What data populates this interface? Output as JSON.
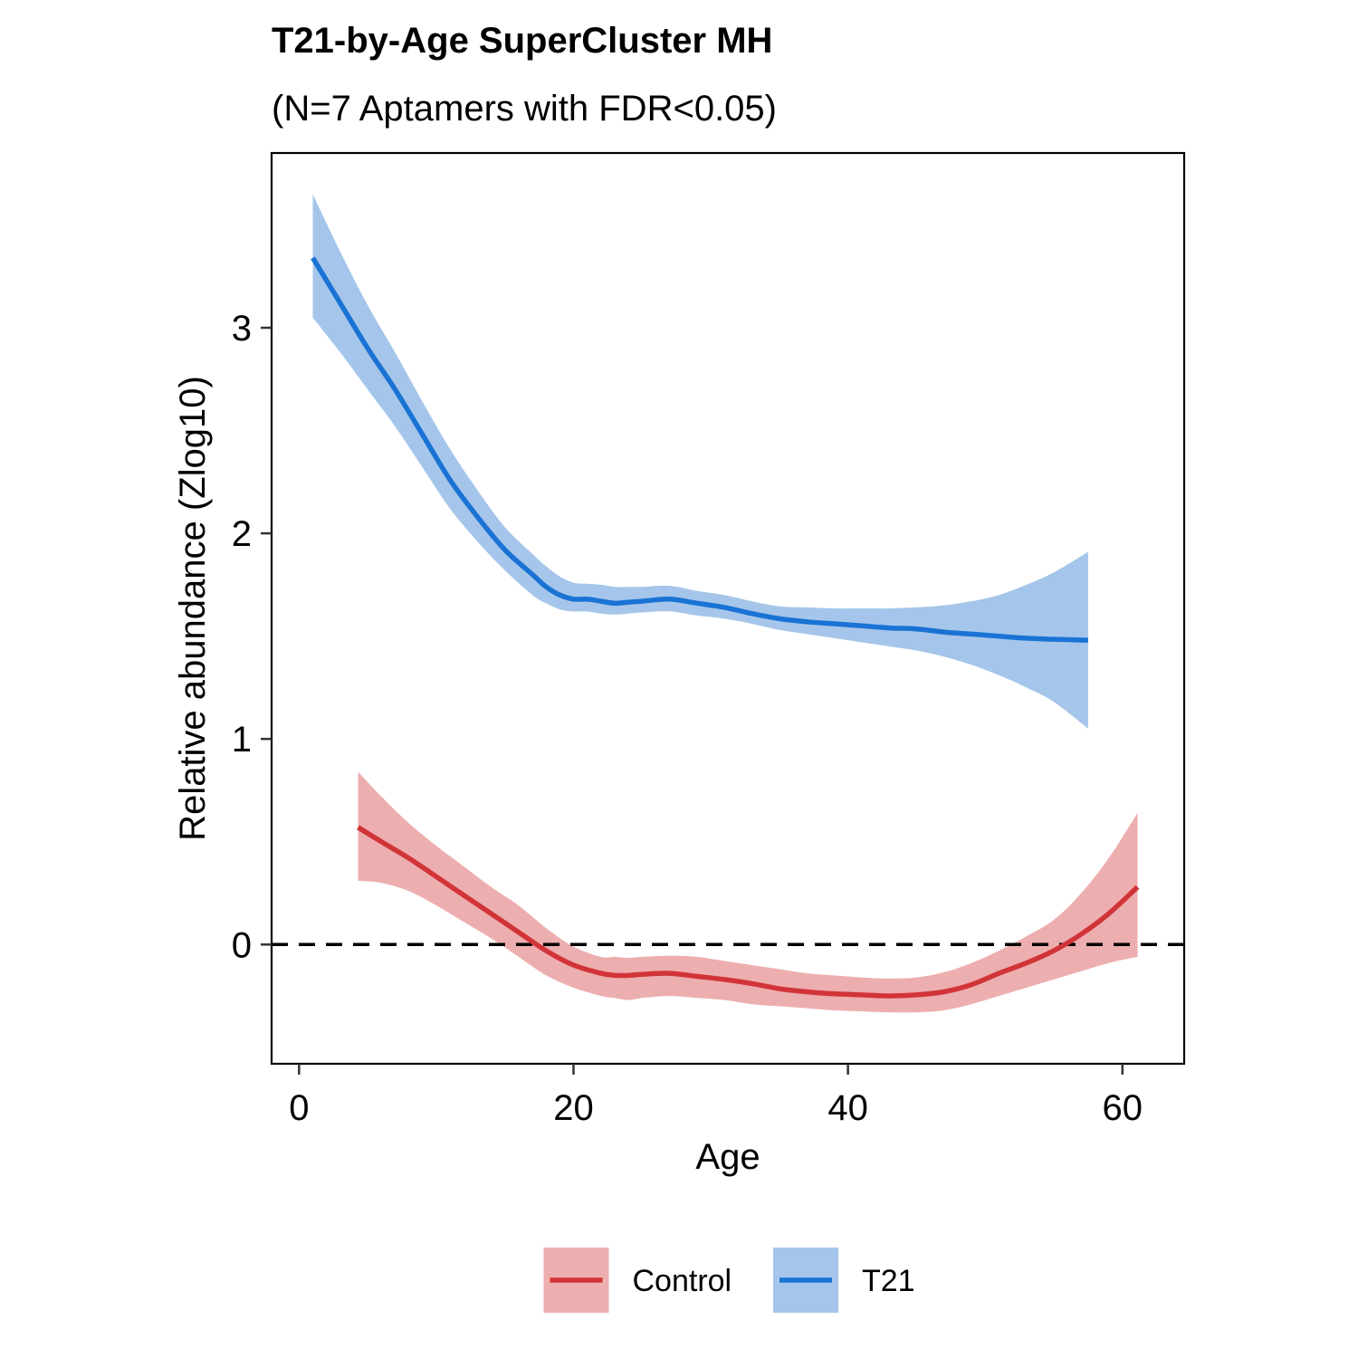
{
  "chart_data": {
    "type": "line",
    "title": "T21-by-Age SuperCluster MH",
    "subtitle": "(N=7 Aptamers with FDR<0.05)",
    "xlabel": "Age",
    "ylabel": "Relative abundance (Zlog10)",
    "xlim": [
      -2,
      64.5
    ],
    "ylim": [
      -0.58,
      3.85
    ],
    "xticks": [
      0,
      20,
      40,
      60
    ],
    "yticks": [
      0,
      1,
      2,
      3
    ],
    "grid": false,
    "reference_line": {
      "y": 0,
      "style": "dashed"
    },
    "legend": {
      "position": "bottom",
      "entries": [
        "Control",
        "T21"
      ]
    },
    "series": [
      {
        "name": "Control",
        "color": "#D13438",
        "band_color": "#EDAEAF",
        "x": [
          4.3,
          6,
          8,
          10,
          12,
          14,
          16,
          18,
          20,
          22,
          23,
          24,
          25,
          27,
          29,
          31,
          33,
          35,
          37,
          39,
          41,
          43,
          45,
          47,
          49,
          51,
          53,
          55,
          57,
          59,
          61.1
        ],
        "y": [
          0.57,
          0.5,
          0.42,
          0.33,
          0.24,
          0.15,
          0.06,
          -0.03,
          -0.1,
          -0.14,
          -0.15,
          -0.15,
          -0.145,
          -0.14,
          -0.155,
          -0.17,
          -0.19,
          -0.215,
          -0.23,
          -0.24,
          -0.245,
          -0.25,
          -0.245,
          -0.23,
          -0.195,
          -0.14,
          -0.09,
          -0.03,
          0.05,
          0.15,
          0.28
        ],
        "lower": [
          0.31,
          0.3,
          0.26,
          0.19,
          0.11,
          0.03,
          -0.06,
          -0.15,
          -0.21,
          -0.25,
          -0.26,
          -0.27,
          -0.26,
          -0.25,
          -0.26,
          -0.27,
          -0.29,
          -0.3,
          -0.31,
          -0.32,
          -0.325,
          -0.33,
          -0.33,
          -0.32,
          -0.29,
          -0.25,
          -0.21,
          -0.17,
          -0.13,
          -0.09,
          -0.06
        ],
        "upper": [
          0.84,
          0.72,
          0.59,
          0.48,
          0.38,
          0.28,
          0.19,
          0.08,
          -0.01,
          -0.06,
          -0.06,
          -0.065,
          -0.06,
          -0.055,
          -0.06,
          -0.08,
          -0.1,
          -0.12,
          -0.14,
          -0.15,
          -0.16,
          -0.165,
          -0.16,
          -0.135,
          -0.09,
          -0.03,
          0.04,
          0.12,
          0.25,
          0.42,
          0.64
        ]
      },
      {
        "name": "T21",
        "color": "#1A73D4",
        "band_color": "#A5C6EA",
        "x": [
          1,
          3,
          5,
          7,
          9,
          11,
          13,
          15,
          17,
          18,
          19,
          20,
          21,
          22,
          23,
          24,
          25,
          27,
          29,
          31,
          33,
          35,
          37,
          39,
          41,
          43,
          45,
          47,
          49,
          51,
          53,
          55,
          57.5
        ],
        "y": [
          3.34,
          3.12,
          2.9,
          2.7,
          2.48,
          2.26,
          2.08,
          1.92,
          1.8,
          1.74,
          1.7,
          1.68,
          1.68,
          1.67,
          1.66,
          1.665,
          1.67,
          1.68,
          1.66,
          1.64,
          1.61,
          1.585,
          1.57,
          1.56,
          1.55,
          1.54,
          1.535,
          1.52,
          1.51,
          1.5,
          1.49,
          1.485,
          1.48
        ],
        "lower": [
          3.05,
          2.88,
          2.7,
          2.52,
          2.32,
          2.12,
          1.96,
          1.82,
          1.7,
          1.66,
          1.63,
          1.62,
          1.62,
          1.61,
          1.605,
          1.61,
          1.615,
          1.62,
          1.6,
          1.585,
          1.56,
          1.53,
          1.51,
          1.49,
          1.47,
          1.45,
          1.43,
          1.4,
          1.36,
          1.31,
          1.25,
          1.18,
          1.05
        ],
        "upper": [
          3.65,
          3.37,
          3.11,
          2.88,
          2.64,
          2.41,
          2.21,
          2.03,
          1.9,
          1.84,
          1.79,
          1.76,
          1.755,
          1.75,
          1.74,
          1.74,
          1.74,
          1.745,
          1.72,
          1.7,
          1.67,
          1.645,
          1.64,
          1.635,
          1.635,
          1.635,
          1.64,
          1.65,
          1.67,
          1.7,
          1.75,
          1.81,
          1.91
        ]
      }
    ]
  }
}
